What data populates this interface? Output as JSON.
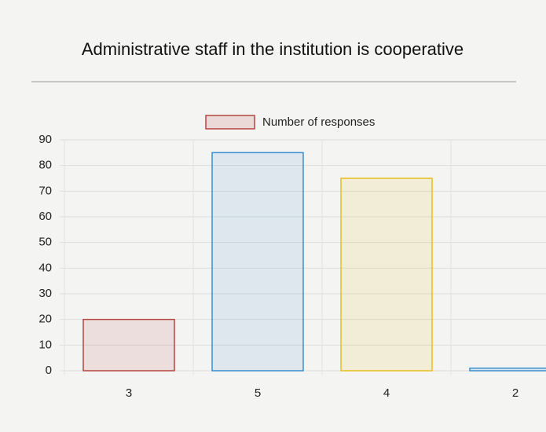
{
  "chart_data": {
    "type": "bar",
    "title": "Administrative staff in the institution is cooperative",
    "categories": [
      "3",
      "5",
      "4",
      "2"
    ],
    "series": [
      {
        "name": "Number of responses",
        "colors": [
          "#b5453f",
          "#3a8fd0",
          "#e8bd1a",
          "#3a8fd0"
        ],
        "values": [
          20,
          85,
          75,
          1
        ]
      }
    ],
    "ylim": [
      0,
      90
    ],
    "yticks": [
      0,
      10,
      20,
      30,
      40,
      50,
      60,
      70,
      80,
      90
    ],
    "grid": true,
    "legend": "top"
  }
}
